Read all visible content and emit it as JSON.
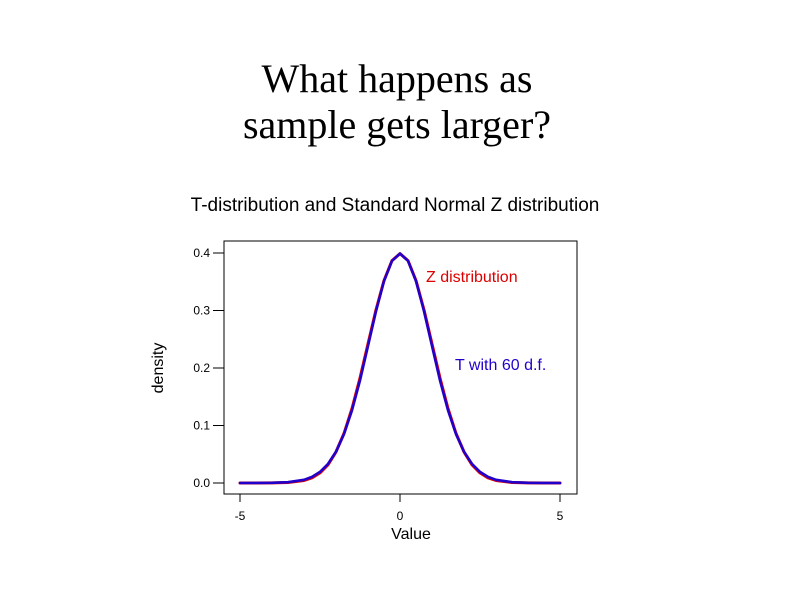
{
  "slide": {
    "title_line1": "What happens as",
    "title_line2": "sample gets larger?"
  },
  "chart_data": {
    "type": "line",
    "title": "T-distribution and Standard Normal Z distribution",
    "xlabel": "Value",
    "ylabel": "density",
    "xlim": [
      -5,
      5
    ],
    "ylim": [
      0,
      0.4
    ],
    "x_ticks": [
      "-5",
      "0",
      "5"
    ],
    "x_tick_values": [
      -5,
      0,
      5
    ],
    "y_ticks": [
      "0.0",
      "0.1",
      "0.2",
      "0.3",
      "0.4"
    ],
    "y_tick_values": [
      0,
      0.1,
      0.2,
      0.3,
      0.4
    ],
    "grid": false,
    "x": [
      -5,
      -4.5,
      -4,
      -3.5,
      -3,
      -2.75,
      -2.5,
      -2.25,
      -2,
      -1.75,
      -1.5,
      -1.25,
      -1,
      -0.75,
      -0.5,
      -0.25,
      0,
      0.25,
      0.5,
      0.75,
      1,
      1.25,
      1.5,
      1.75,
      2,
      2.25,
      2.5,
      2.75,
      3,
      3.5,
      4,
      4.5,
      5
    ],
    "series": [
      {
        "name": "Z distribution",
        "color": "#dd0000",
        "values": [
          0.0,
          0.0,
          0.0001,
          0.0009,
          0.0044,
          0.0091,
          0.0175,
          0.0317,
          0.054,
          0.0863,
          0.1295,
          0.1826,
          0.242,
          0.3011,
          0.3521,
          0.3867,
          0.3989,
          0.3867,
          0.3521,
          0.3011,
          0.242,
          0.1826,
          0.1295,
          0.0863,
          0.054,
          0.0317,
          0.0175,
          0.0091,
          0.0044,
          0.0009,
          0.0001,
          0.0,
          0.0
        ]
      },
      {
        "name": "T with 60 d.f.",
        "color": "#2200cc",
        "values": [
          0.0,
          0.0001,
          0.0003,
          0.0014,
          0.0055,
          0.0106,
          0.0193,
          0.0333,
          0.0545,
          0.0851,
          0.1264,
          0.1783,
          0.2382,
          0.2988,
          0.3511,
          0.3864,
          0.3989,
          0.3864,
          0.3511,
          0.2988,
          0.2382,
          0.1783,
          0.1264,
          0.0851,
          0.0545,
          0.0333,
          0.0193,
          0.0106,
          0.0055,
          0.0014,
          0.0003,
          0.0001,
          0.0
        ]
      }
    ],
    "annotations": [
      {
        "text": "Z distribution",
        "color": "#dd0000"
      },
      {
        "text": "T with 60 d.f.",
        "color": "#2200cc"
      }
    ]
  }
}
